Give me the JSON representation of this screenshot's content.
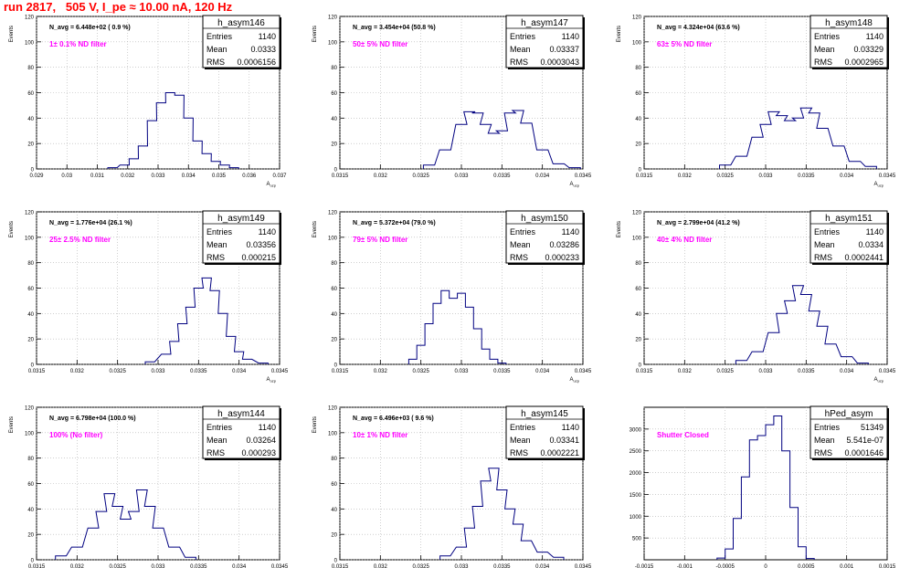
{
  "page": {
    "title": "run 2817,   505 V, I_pe ≈ 10.00 nA, 120 Hz"
  },
  "chart_data": [
    {
      "type": "bar",
      "name": "h_asym146",
      "ylabel": "Events",
      "xlabel": "A_uzp",
      "xlabel_main": "A",
      "xlabel_sub": "uzp",
      "navg": "N_avg = 6.448e+02 ( 0.9 %)",
      "filter": "1± 0.1% ND filter",
      "stats": {
        "Entries": "1140",
        "Mean": "0.0333",
        "RMS": "0.0006156"
      },
      "xlim": [
        0.029,
        0.037
      ],
      "xticks": [
        "0.029",
        "0.03",
        "0.031",
        "0.032",
        "0.033",
        "0.034",
        "0.035",
        "0.036",
        "0.037"
      ],
      "ylim": [
        0,
        120
      ],
      "yticks": [
        "0",
        "20",
        "40",
        "60",
        "80",
        "100",
        "120"
      ],
      "x": [
        0.0315,
        0.0319,
        0.0322,
        0.0325,
        0.0328,
        0.0331,
        0.0334,
        0.0337,
        0.034,
        0.0343,
        0.0346,
        0.0349,
        0.0352,
        0.0355
      ],
      "values": [
        1,
        3,
        8,
        18,
        38,
        52,
        60,
        58,
        40,
        22,
        12,
        6,
        3,
        1
      ]
    },
    {
      "type": "bar",
      "name": "h_asym147",
      "ylabel": "Events",
      "xlabel": "A_uzp",
      "xlabel_main": "A",
      "xlabel_sub": "uzp",
      "navg": "N_avg = 3.454e+04 (50.8 %)",
      "filter": "50± 5% ND filter",
      "stats": {
        "Entries": "1140",
        "Mean": "0.03337",
        "RMS": "0.0003043"
      },
      "xlim": [
        0.0315,
        0.0345
      ],
      "xticks": [
        "0.0315",
        "0.032",
        "0.0325",
        "0.033",
        "0.0335",
        "0.034",
        "0.0345"
      ],
      "ylim": [
        0,
        120
      ],
      "yticks": [
        "0",
        "20",
        "40",
        "60",
        "80",
        "100",
        "120"
      ],
      "x": [
        0.0326,
        0.0328,
        0.033,
        0.0331,
        0.0332,
        0.0333,
        0.0334,
        0.0335,
        0.0336,
        0.0337,
        0.0338,
        0.034,
        0.0342,
        0.0344
      ],
      "values": [
        3,
        15,
        35,
        45,
        44,
        35,
        28,
        30,
        44,
        46,
        36,
        15,
        4,
        1
      ]
    },
    {
      "type": "bar",
      "name": "h_asym148",
      "ylabel": "Events",
      "xlabel": "A_uzp",
      "xlabel_main": "A",
      "xlabel_sub": "uzp",
      "navg": "N_avg = 4.324e+04 (63.6 %)",
      "filter": "63± 5% ND filter",
      "stats": {
        "Entries": "1140",
        "Mean": "0.03329",
        "RMS": "0.0002965"
      },
      "xlim": [
        0.0315,
        0.0345
      ],
      "xticks": [
        "0.0315",
        "0.032",
        "0.0325",
        "0.033",
        "0.0335",
        "0.034",
        "0.0345"
      ],
      "ylim": [
        0,
        120
      ],
      "yticks": [
        "0",
        "20",
        "40",
        "60",
        "80",
        "100",
        "120"
      ],
      "x": [
        0.0325,
        0.0327,
        0.0329,
        0.033,
        0.0331,
        0.0332,
        0.0333,
        0.0334,
        0.0335,
        0.0336,
        0.0337,
        0.0339,
        0.0341,
        0.0343
      ],
      "values": [
        3,
        10,
        25,
        35,
        45,
        42,
        38,
        40,
        48,
        44,
        32,
        18,
        6,
        2
      ]
    },
    {
      "type": "bar",
      "name": "h_asym149",
      "ylabel": "Events",
      "xlabel": "A_uzp",
      "xlabel_main": "A",
      "xlabel_sub": "uzp",
      "navg": "N_avg = 1.776e+04 (26.1 %)",
      "filter": "25± 2.5% ND filter",
      "stats": {
        "Entries": "1140",
        "Mean": "0.03356",
        "RMS": "0.000215"
      },
      "xlim": [
        0.0315,
        0.0345
      ],
      "xticks": [
        "0.0315",
        "0.032",
        "0.0325",
        "0.033",
        "0.0335",
        "0.034",
        "0.0345"
      ],
      "ylim": [
        0,
        120
      ],
      "yticks": [
        "0",
        "20",
        "40",
        "60",
        "80",
        "100",
        "120"
      ],
      "x": [
        0.0329,
        0.0331,
        0.0332,
        0.0333,
        0.0334,
        0.0335,
        0.0336,
        0.0337,
        0.0338,
        0.0339,
        0.034,
        0.0341,
        0.0343
      ],
      "values": [
        2,
        8,
        18,
        32,
        45,
        60,
        68,
        58,
        40,
        22,
        10,
        4,
        1
      ]
    },
    {
      "type": "bar",
      "name": "h_asym150",
      "ylabel": "Events",
      "xlabel": "A_uzp",
      "xlabel_main": "A",
      "xlabel_sub": "uzp",
      "navg": "N_avg = 5.372e+04 (79.0 %)",
      "filter": "79± 5% ND filter",
      "stats": {
        "Entries": "1140",
        "Mean": "0.03286",
        "RMS": "0.000233"
      },
      "xlim": [
        0.0315,
        0.0345
      ],
      "xticks": [
        "0.0315",
        "0.032",
        "0.0325",
        "0.033",
        "0.0335",
        "0.034",
        "0.0345"
      ],
      "ylim": [
        0,
        120
      ],
      "yticks": [
        "0",
        "20",
        "40",
        "60",
        "80",
        "100",
        "120"
      ],
      "x": [
        0.0324,
        0.0325,
        0.0326,
        0.0327,
        0.0328,
        0.0329,
        0.033,
        0.0331,
        0.0332,
        0.0333,
        0.0334,
        0.0335
      ],
      "values": [
        4,
        15,
        32,
        48,
        58,
        52,
        56,
        45,
        28,
        12,
        4,
        1
      ]
    },
    {
      "type": "bar",
      "name": "h_asym151",
      "ylabel": "Events",
      "xlabel": "A_uzp",
      "xlabel_main": "A",
      "xlabel_sub": "uzp",
      "navg": "N_avg = 2.799e+04 (41.2 %)",
      "filter": "40± 4% ND filter",
      "stats": {
        "Entries": "1140",
        "Mean": "0.0334",
        "RMS": "0.0002441"
      },
      "xlim": [
        0.0315,
        0.0345
      ],
      "xticks": [
        "0.0315",
        "0.032",
        "0.0325",
        "0.033",
        "0.0335",
        "0.034",
        "0.0345"
      ],
      "ylim": [
        0,
        120
      ],
      "yticks": [
        "0",
        "20",
        "40",
        "60",
        "80",
        "100",
        "120"
      ],
      "x": [
        0.0327,
        0.0329,
        0.0331,
        0.0332,
        0.0333,
        0.0334,
        0.0335,
        0.0336,
        0.0337,
        0.0338,
        0.034,
        0.0342
      ],
      "values": [
        3,
        10,
        25,
        40,
        50,
        62,
        55,
        42,
        30,
        16,
        6,
        1
      ]
    },
    {
      "type": "bar",
      "name": "h_asym144",
      "ylabel": "Events",
      "xlabel": "A_uzp",
      "xlabel_main": "A",
      "xlabel_sub": "uzp",
      "navg": "N_avg = 6.798e+04 (100.0 %)",
      "filter": "100% (No filter)",
      "stats": {
        "Entries": "1140",
        "Mean": "0.03264",
        "RMS": "0.000293"
      },
      "xlim": [
        0.0315,
        0.0345
      ],
      "xticks": [
        "0.0315",
        "0.032",
        "0.0325",
        "0.033",
        "0.0335",
        "0.034",
        "0.0345"
      ],
      "ylim": [
        0,
        120
      ],
      "yticks": [
        "0",
        "20",
        "40",
        "60",
        "80",
        "100",
        "120"
      ],
      "x": [
        0.0318,
        0.032,
        0.0322,
        0.0323,
        0.0324,
        0.0325,
        0.0326,
        0.0327,
        0.0328,
        0.0329,
        0.033,
        0.0332,
        0.0334
      ],
      "values": [
        3,
        10,
        25,
        38,
        52,
        42,
        32,
        38,
        55,
        42,
        25,
        10,
        2
      ]
    },
    {
      "type": "bar",
      "name": "h_asym145",
      "ylabel": "Events",
      "xlabel": "A_uzp",
      "xlabel_main": "A",
      "xlabel_sub": "uzp",
      "navg": "N_avg = 6.496e+03 ( 9.6 %)",
      "filter": "10± 1% ND filter",
      "stats": {
        "Entries": "1140",
        "Mean": "0.03341",
        "RMS": "0.0002221"
      },
      "xlim": [
        0.0315,
        0.0345
      ],
      "xticks": [
        "0.0315",
        "0.032",
        "0.0325",
        "0.033",
        "0.0335",
        "0.034",
        "0.0345"
      ],
      "ylim": [
        0,
        120
      ],
      "yticks": [
        "0",
        "20",
        "40",
        "60",
        "80",
        "100",
        "120"
      ],
      "x": [
        0.0328,
        0.033,
        0.0331,
        0.0332,
        0.0333,
        0.0334,
        0.0335,
        0.0336,
        0.0337,
        0.0338,
        0.034,
        0.0342
      ],
      "values": [
        3,
        10,
        25,
        42,
        62,
        72,
        55,
        40,
        28,
        15,
        6,
        2
      ]
    },
    {
      "type": "bar",
      "name": "hPed_asym",
      "ylabel": "",
      "xlabel": "",
      "xlabel_main": "",
      "xlabel_sub": "",
      "navg": "",
      "filter": "Shutter Closed",
      "stats": {
        "Entries": "51349",
        "Mean": "5.541e-07",
        "RMS": "0.0001646"
      },
      "xlim": [
        -0.0015,
        0.0015
      ],
      "xticks": [
        "-0.0015",
        "-0.001",
        "-0.0005",
        "0",
        "0.0005",
        "0.001",
        "0.0015"
      ],
      "ylim": [
        0,
        3500
      ],
      "yticks": [
        "500",
        "1000",
        "1500",
        "2000",
        "2500",
        "3000"
      ],
      "x": [
        -0.00055,
        -0.00045,
        -0.00035,
        -0.00025,
        -0.00015,
        -5e-05,
        5e-05,
        0.00015,
        0.00025,
        0.00035,
        0.00045,
        0.00055
      ],
      "values": [
        40,
        250,
        950,
        1900,
        2750,
        2850,
        3100,
        3300,
        2500,
        1200,
        300,
        30
      ]
    }
  ]
}
